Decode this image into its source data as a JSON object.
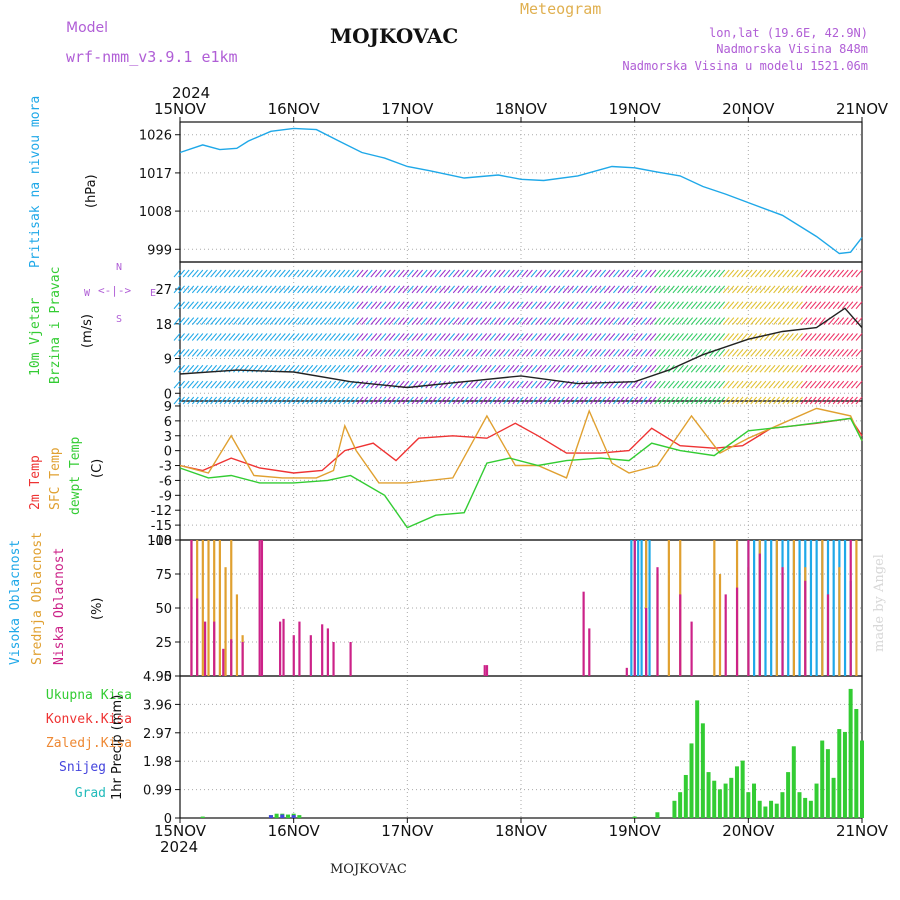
{
  "header": {
    "model_label": "Model",
    "model_name": "wrf-nmm_v3.9.1 e1km",
    "station": "MOJKOVAC",
    "meteogram": "Meteogram",
    "lonlat": "lon,lat (19.6E, 42.9N)",
    "altitude": "Nadmorska Visina 848m",
    "model_altitude": "Nadmorska Visina u modelu 1521.06m",
    "year_top": "2024",
    "year_bottom": "2024",
    "footer": "MOJKOVAC",
    "watermark": "made by Angel"
  },
  "dates": [
    "15NOV",
    "16NOV",
    "17NOV",
    "18NOV",
    "19NOV",
    "20NOV",
    "21NOV"
  ],
  "panels": {
    "pressure": {
      "label": "Pritisak na nivou mora",
      "unit": "(hPa)",
      "color": "#1fa8e8"
    },
    "wind": {
      "label1": "10m Vjetar",
      "label2": "Brzina i Pravac",
      "unit": "(m/s)",
      "compass": [
        "N",
        "S",
        "W",
        "E"
      ]
    },
    "temp": {
      "label1": "2m Temp",
      "label2": "SFC Temp",
      "label3": "dewpt Temp",
      "unit": "(C)"
    },
    "cloud": {
      "label1": "Visoka Oblacnost",
      "label2": "Srednja Oblacnost",
      "label3": "Niska Oblacnost",
      "unit": "(%)"
    },
    "precip": {
      "legend": [
        "Ukupna Kisa",
        "Konvek.Kisa",
        "Zaledj.Kisa",
        "Snijeg",
        "Grad"
      ],
      "unit": "1hr Precip (mm)",
      "legend_colors": [
        "#33cc33",
        "#ee3333",
        "#ee8833",
        "#4444dd",
        "#22bbbb"
      ]
    }
  },
  "chart_data": [
    {
      "type": "line",
      "title": "Pritisak na nivou mora",
      "ylabel": "(hPa)",
      "x_unit": "day offset from 15NOV",
      "ylim": [
        996,
        1029
      ],
      "yticks": [
        999,
        1008,
        1017,
        1026
      ],
      "series": [
        {
          "name": "Pritisak na nivou mora",
          "color": "#1fa8e8",
          "x": [
            0,
            0.2,
            0.35,
            0.5,
            0.6,
            0.8,
            1.0,
            1.2,
            1.4,
            1.6,
            1.8,
            2.0,
            2.2,
            2.5,
            2.8,
            3.0,
            3.2,
            3.5,
            3.8,
            4.0,
            4.2,
            4.4,
            4.6,
            4.8,
            5.0,
            5.3,
            5.6,
            5.8,
            5.9,
            6.0
          ],
          "y": [
            1021.8,
            1023.6,
            1022.5,
            1022.8,
            1024.5,
            1026.8,
            1027.5,
            1027.2,
            1024.5,
            1021.8,
            1020.5,
            1018.5,
            1017.5,
            1015.8,
            1016.5,
            1015.5,
            1015.2,
            1016.3,
            1018.5,
            1018.2,
            1017.2,
            1016.3,
            1013.8,
            1012,
            1010,
            1007,
            1002,
            998,
            998.3,
            1001.8
          ]
        }
      ]
    },
    {
      "type": "line",
      "title": "10m Vjetar Brzina i Pravac",
      "ylabel": "(m/s)",
      "x_unit": "day offset from 15NOV",
      "ylim": [
        -2,
        34
      ],
      "yticks": [
        0,
        9,
        18,
        27
      ],
      "series": [
        {
          "name": "Brzina",
          "x": [
            0,
            0.5,
            1.0,
            1.5,
            2.0,
            2.5,
            3.0,
            3.5,
            4.0,
            4.3,
            4.6,
            5.0,
            5.3,
            5.6,
            5.85,
            6.0
          ],
          "y": [
            5,
            6,
            5.5,
            3,
            1.5,
            3,
            4.5,
            2.5,
            3,
            6,
            10,
            14,
            16,
            17,
            22,
            17
          ]
        }
      ]
    },
    {
      "type": "line",
      "title": "2m Temp / SFC Temp / dewpt Temp",
      "ylabel": "(C)",
      "x_unit": "day offset from 15NOV",
      "ylim": [
        -18,
        10
      ],
      "yticks": [
        -18,
        -15,
        -12,
        -9,
        -6,
        -3,
        0,
        3,
        6,
        9
      ],
      "series": [
        {
          "name": "2m Temp",
          "color": "#ee3333",
          "x": [
            0,
            0.2,
            0.45,
            0.7,
            1.0,
            1.25,
            1.45,
            1.7,
            1.9,
            2.1,
            2.4,
            2.7,
            2.95,
            3.15,
            3.4,
            3.7,
            3.95,
            4.15,
            4.4,
            4.7,
            4.95,
            5.2,
            5.6,
            5.9,
            6.0
          ],
          "y": [
            -3,
            -4,
            -1.5,
            -3.5,
            -4.5,
            -4,
            0,
            1.5,
            -2,
            2.5,
            3,
            2.5,
            5.5,
            3,
            -0.5,
            -0.5,
            0,
            4.5,
            1,
            0.5,
            1,
            4.5,
            5.5,
            6.5,
            3
          ]
        },
        {
          "name": "SFC Temp",
          "color": "#e0a030",
          "x": [
            0,
            0.25,
            0.45,
            0.65,
            0.9,
            1.2,
            1.35,
            1.45,
            1.55,
            1.75,
            2.0,
            2.4,
            2.7,
            2.95,
            3.15,
            3.4,
            3.6,
            3.8,
            3.95,
            4.2,
            4.5,
            4.75,
            5.0,
            5.2,
            5.6,
            5.9,
            6.0
          ],
          "y": [
            -3,
            -4.5,
            3,
            -5,
            -5.5,
            -5.5,
            -4,
            5,
            0,
            -6.5,
            -6.5,
            -5.5,
            7,
            -3,
            -3,
            -5.5,
            8,
            -2.5,
            -4.5,
            -3,
            7,
            -0.5,
            2.5,
            4.5,
            8.5,
            7,
            2
          ]
        },
        {
          "name": "dewpt Temp",
          "color": "#33cc33",
          "x": [
            0,
            0.25,
            0.45,
            0.7,
            1.0,
            1.3,
            1.5,
            1.8,
            2.0,
            2.25,
            2.5,
            2.7,
            2.9,
            3.15,
            3.4,
            3.7,
            3.95,
            4.15,
            4.4,
            4.7,
            5.0,
            5.4,
            5.9,
            6.0
          ],
          "y": [
            -3.5,
            -5.5,
            -5,
            -6.5,
            -6.5,
            -6,
            -5,
            -9,
            -15.5,
            -13,
            -12.5,
            -2.5,
            -1.5,
            -3,
            -2,
            -1.5,
            -2,
            1.5,
            0,
            -1,
            4,
            5,
            6.5,
            2
          ]
        }
      ]
    },
    {
      "type": "bar",
      "title": "Visoka / Srednja / Niska Oblacnost",
      "ylabel": "(%)",
      "x_unit": "day offset from 15NOV",
      "ylim": [
        0,
        100
      ],
      "yticks": [
        0,
        25,
        50,
        75,
        100
      ],
      "series": [
        {
          "name": "Visoka Oblacnost",
          "color": "#1fa8e8",
          "x": [
            3.97,
            4.0,
            4.03,
            4.06,
            4.1,
            4.13,
            5.0,
            5.05,
            5.1,
            5.15,
            5.2,
            5.25,
            5.3,
            5.35,
            5.4,
            5.45,
            5.5,
            5.55,
            5.6,
            5.65,
            5.7,
            5.75,
            5.8,
            5.85,
            5.9
          ],
          "y": [
            100,
            100,
            100,
            100,
            100,
            100,
            100,
            100,
            100,
            100,
            100,
            100,
            100,
            100,
            100,
            100,
            100,
            100,
            100,
            100,
            100,
            100,
            100,
            100,
            70
          ]
        },
        {
          "name": "Srednja Oblacnost",
          "color": "#e0a030",
          "x": [
            0.1,
            0.15,
            0.2,
            0.25,
            0.3,
            0.35,
            0.4,
            0.45,
            0.5,
            0.55,
            4.1,
            4.2,
            4.3,
            4.4,
            4.7,
            4.75,
            4.9,
            5.0,
            5.1,
            5.25,
            5.4,
            5.5,
            5.65,
            5.8,
            5.95
          ],
          "y": [
            100,
            100,
            100,
            100,
            100,
            100,
            80,
            100,
            60,
            30,
            100,
            75,
            100,
            100,
            100,
            75,
            100,
            80,
            100,
            100,
            100,
            80,
            100,
            80,
            100
          ]
        },
        {
          "name": "Niska Oblacnost",
          "color": "#cc2288",
          "x": [
            0.1,
            0.15,
            0.22,
            0.3,
            0.38,
            0.45,
            0.55,
            0.7,
            0.72,
            0.88,
            0.91,
            1.0,
            1.05,
            1.15,
            1.25,
            1.3,
            1.35,
            1.5,
            2.68,
            2.7,
            3.55,
            3.6,
            3.93,
            4.0,
            4.1,
            4.2,
            4.4,
            4.5,
            4.8,
            4.9,
            5.0,
            5.1,
            5.3,
            5.5,
            5.7,
            5.9
          ],
          "y": [
            100,
            57,
            40,
            40,
            20,
            27,
            25,
            100,
            100,
            40,
            42,
            30,
            40,
            30,
            38,
            35,
            25,
            25,
            8,
            8,
            62,
            35,
            6,
            100,
            50,
            80,
            60,
            40,
            60,
            65,
            100,
            90,
            80,
            70,
            60,
            100
          ]
        }
      ]
    },
    {
      "type": "bar",
      "title": "1hr Precip",
      "ylabel": "1hr Precip (mm)",
      "x_unit": "day offset from 15NOV",
      "ylim": [
        0,
        4.95
      ],
      "yticks": [
        0,
        0.99,
        1.98,
        2.97,
        3.96,
        4.95
      ],
      "series": [
        {
          "name": "Ukupna Kisa",
          "color": "#33cc33",
          "x": [
            0.2,
            0.8,
            0.85,
            0.9,
            0.95,
            1.0,
            1.05,
            4.0,
            4.2,
            4.35,
            4.4,
            4.45,
            4.5,
            4.55,
            4.6,
            4.65,
            4.7,
            4.75,
            4.8,
            4.85,
            4.9,
            4.95,
            5.0,
            5.05,
            5.1,
            5.15,
            5.2,
            5.25,
            5.3,
            5.35,
            5.4,
            5.45,
            5.5,
            5.55,
            5.6,
            5.65,
            5.7,
            5.75,
            5.8,
            5.85,
            5.9,
            5.95,
            6.0
          ],
          "y": [
            0.05,
            0.1,
            0.15,
            0.15,
            0.12,
            0.15,
            0.1,
            0.05,
            0.2,
            0.6,
            0.9,
            1.5,
            2.6,
            4.1,
            3.3,
            1.6,
            1.3,
            1.0,
            1.2,
            1.4,
            1.8,
            2.0,
            0.9,
            1.2,
            0.6,
            0.4,
            0.6,
            0.5,
            0.9,
            1.6,
            2.5,
            0.9,
            0.7,
            0.6,
            1.2,
            2.7,
            2.4,
            1.4,
            3.1,
            3.0,
            4.5,
            3.8,
            2.7
          ]
        },
        {
          "name": "Snijeg",
          "color": "#4444dd",
          "x": [
            0.8,
            0.9,
            1.0
          ],
          "y": [
            0.1,
            0.12,
            0.1
          ]
        }
      ]
    }
  ]
}
